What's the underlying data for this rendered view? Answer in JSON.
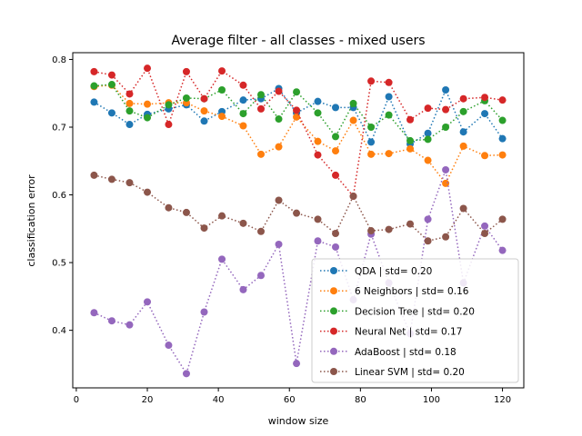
{
  "chart_data": {
    "type": "line",
    "title": "Average filter - all classes - mixed users",
    "xlabel": "window size",
    "ylabel": "classification error",
    "xlim": [
      -1,
      126
    ],
    "ylim": [
      0.315,
      0.81
    ],
    "xticks": [
      0,
      20,
      40,
      60,
      80,
      100,
      120
    ],
    "yticks": [
      0.4,
      0.5,
      0.6,
      0.7,
      0.8
    ],
    "grid": false,
    "legend_position": "lower-right",
    "x": [
      5,
      10,
      15,
      20,
      26,
      31,
      36,
      41,
      47,
      52,
      57,
      62,
      68,
      73,
      78,
      83,
      88,
      94,
      99,
      104,
      109,
      115,
      120
    ],
    "series": [
      {
        "name": "QDA | std= 0.20",
        "color": "#1f77b4",
        "values": [
          0.737,
          0.721,
          0.704,
          0.719,
          0.727,
          0.733,
          0.709,
          0.723,
          0.74,
          0.742,
          0.757,
          0.721,
          0.738,
          0.729,
          0.729,
          0.678,
          0.745,
          0.675,
          0.691,
          0.755,
          0.693,
          0.72,
          0.683
        ]
      },
      {
        "name": "6 Neighbors | std= 0.16",
        "color": "#ff7f0e",
        "values": [
          0.76,
          0.762,
          0.735,
          0.734,
          0.736,
          0.736,
          0.724,
          0.716,
          0.702,
          0.66,
          0.671,
          0.715,
          0.679,
          0.665,
          0.71,
          0.66,
          0.661,
          0.668,
          0.651,
          0.617,
          0.672,
          0.658,
          0.659
        ]
      },
      {
        "name": "Decision Tree | std= 0.20",
        "color": "#2ca02c",
        "values": [
          0.761,
          0.763,
          0.724,
          0.714,
          0.733,
          0.743,
          0.742,
          0.755,
          0.72,
          0.748,
          0.712,
          0.752,
          0.721,
          0.686,
          0.735,
          0.7,
          0.718,
          0.68,
          0.682,
          0.7,
          0.723,
          0.739,
          0.71
        ]
      },
      {
        "name": "Neural Net | std= 0.17",
        "color": "#d62728",
        "values": [
          0.782,
          0.777,
          0.749,
          0.787,
          0.704,
          0.782,
          0.742,
          0.783,
          0.762,
          0.727,
          0.753,
          0.725,
          0.659,
          0.629,
          0.598,
          0.768,
          0.766,
          0.711,
          0.728,
          0.726,
          0.742,
          0.744,
          0.74
        ]
      },
      {
        "name": "AdaBoost | std= 0.18",
        "color": "#9467bd",
        "values": [
          0.426,
          0.414,
          0.408,
          0.442,
          0.378,
          0.336,
          0.427,
          0.505,
          0.46,
          0.481,
          0.527,
          0.351,
          0.532,
          0.523,
          0.445,
          0.542,
          0.47,
          0.395,
          0.564,
          0.637,
          0.47,
          0.554,
          0.518
        ]
      },
      {
        "name": "Linear SVM | std= 0.20",
        "color": "#8c564b",
        "values": [
          0.629,
          0.623,
          0.618,
          0.604,
          0.581,
          0.574,
          0.551,
          0.569,
          0.558,
          0.546,
          0.592,
          0.573,
          0.564,
          0.543,
          0.598,
          0.547,
          0.549,
          0.557,
          0.532,
          0.538,
          0.58,
          0.543,
          0.564
        ]
      }
    ]
  }
}
